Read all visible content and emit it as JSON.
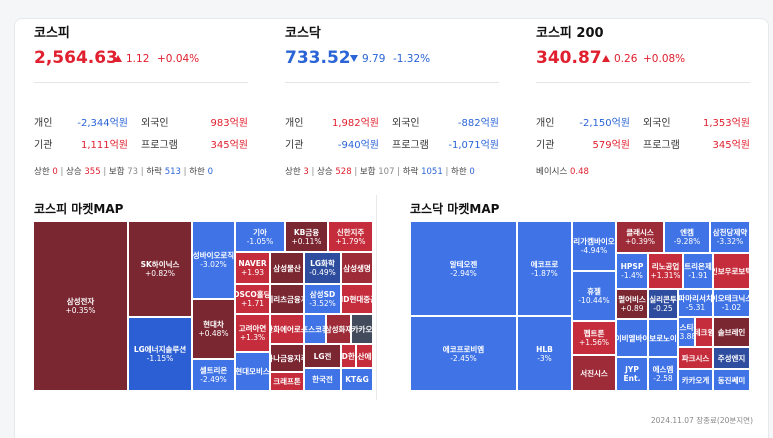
{
  "kospi": {
    "name": "코스피",
    "value": "2,564.63",
    "change": "1.12",
    "pct": "+0.04%",
    "individual_label": "개인",
    "individual": "-2,344억원",
    "foreign_label": "외국인",
    "foreign": "983억원",
    "institution_label": "기관",
    "institution": "1,111억원",
    "program_label": "프로그램",
    "program": "345억원",
    "breadth": {
      "upper_label": "상한",
      "upper": "0",
      "up_label": "상승",
      "up": "355",
      "flat_label": "보합",
      "flat": "73",
      "down_label": "하락",
      "down": "513",
      "lower_label": "하한",
      "lower": "0"
    }
  },
  "kosdaq": {
    "name": "코스닥",
    "value": "733.52",
    "change": "9.79",
    "pct": "-1.32%",
    "individual_label": "개인",
    "individual": "1,982억원",
    "foreign_label": "외국인",
    "foreign": "-882억원",
    "institution_label": "기관",
    "institution": "-940억원",
    "program_label": "프로그램",
    "program": "-1,071억원",
    "breadth": {
      "upper_label": "상한",
      "upper": "3",
      "up_label": "상승",
      "up": "528",
      "flat_label": "보합",
      "flat": "107",
      "down_label": "하락",
      "down": "1051",
      "lower_label": "하한",
      "lower": "0"
    }
  },
  "kospi200": {
    "name": "코스피 200",
    "value": "340.87",
    "change": "0.26",
    "pct": "+0.08%",
    "individual_label": "개인",
    "individual": "-2,150억원",
    "foreign_label": "외국인",
    "foreign": "1,353억원",
    "institution_label": "기관",
    "institution": "579억원",
    "program_label": "프로그램",
    "program": "345억원",
    "basis_label": "베이시스",
    "basis": "0.48"
  },
  "kospi_map": {
    "title": "코스피 마켓MAP",
    "tiles": [
      {
        "name": "삼성전자",
        "pct": "+0.35%",
        "color": "r1"
      },
      {
        "name": "SK하이닉스",
        "pct": "+0.82%",
        "color": "r1"
      },
      {
        "name": "LG에너지솔루션",
        "pct": "-1.15%",
        "color": "b1"
      },
      {
        "name": "삼성바이오로직스",
        "pct": "-3.02%",
        "color": "b2"
      },
      {
        "name": "현대차",
        "pct": "+0.48%",
        "color": "r1"
      },
      {
        "name": "셀트리온",
        "pct": "-2.49%",
        "color": "b2"
      },
      {
        "name": "기아",
        "pct": "-1.05%",
        "color": "b2"
      },
      {
        "name": "KB금융",
        "pct": "+0.11%",
        "color": "r1"
      },
      {
        "name": "신한지주",
        "pct": "+1.79%",
        "color": "r3"
      },
      {
        "name": "NAVER",
        "pct": "+1.93",
        "color": "r3"
      },
      {
        "name": "삼성물산",
        "pct": "",
        "color": "r1"
      },
      {
        "name": "LG화학",
        "pct": "-0.49%",
        "color": "b4"
      },
      {
        "name": "삼성생명",
        "pct": "",
        "color": "r2"
      },
      {
        "name": "메리츠금융지",
        "pct": "",
        "color": "r1"
      },
      {
        "name": "삼성SD",
        "pct": "-3.52%",
        "color": "b2"
      },
      {
        "name": "HD현대중공",
        "pct": "",
        "color": "r3"
      },
      {
        "name": "POSCO홀딩스",
        "pct": "+1.71",
        "color": "r3"
      },
      {
        "name": "한화에어로스",
        "pct": "",
        "color": "r3"
      },
      {
        "name": "포스코퓨",
        "pct": "",
        "color": "b2"
      },
      {
        "name": "삼성화재",
        "pct": "",
        "color": "r2"
      },
      {
        "name": "카카오",
        "pct": "",
        "color": "g0"
      },
      {
        "name": "고려아연",
        "pct": "+1.3%",
        "color": "r3"
      },
      {
        "name": "하나금융지주",
        "pct": "",
        "color": "r1"
      },
      {
        "name": "LG전",
        "pct": "",
        "color": "r1"
      },
      {
        "name": "HD한국",
        "pct": "",
        "color": "r3"
      },
      {
        "name": "두산에너",
        "pct": "",
        "color": "r3"
      },
      {
        "name": "현대모비스",
        "pct": "",
        "color": "b2"
      },
      {
        "name": "크래프톤",
        "pct": "",
        "color": "r3"
      },
      {
        "name": "한국전",
        "pct": "",
        "color": "b2"
      },
      {
        "name": "KT&G",
        "pct": "",
        "color": "b2"
      }
    ]
  },
  "kosdaq_map": {
    "title": "코스닥 마켓MAP",
    "tiles": [
      {
        "name": "알테오젠",
        "pct": "-2.94%",
        "color": "b2"
      },
      {
        "name": "에코프로비엠",
        "pct": "-2.45%",
        "color": "b2"
      },
      {
        "name": "에코프로",
        "pct": "-1.87%",
        "color": "b2"
      },
      {
        "name": "HLB",
        "pct": "-3%",
        "color": "b2"
      },
      {
        "name": "리가켐바이오",
        "pct": "-4.94%",
        "color": "b2"
      },
      {
        "name": "휴젤",
        "pct": "-10.44%",
        "color": "b2"
      },
      {
        "name": "클래시스",
        "pct": "+0.39%",
        "color": "r2"
      },
      {
        "name": "엔켐",
        "pct": "-9.28%",
        "color": "b2"
      },
      {
        "name": "삼천당제약",
        "pct": "-3.32%",
        "color": "b2"
      },
      {
        "name": "HPSP",
        "pct": "-1.4%",
        "color": "b2"
      },
      {
        "name": "리노공업",
        "pct": "+1.31%",
        "color": "r3"
      },
      {
        "name": "셀트리온제약",
        "pct": "-1.91",
        "color": "b2"
      },
      {
        "name": "레인보우로보틱스",
        "pct": "",
        "color": "r3"
      },
      {
        "name": "펄어비스",
        "pct": "+0.89",
        "color": "r1"
      },
      {
        "name": "실리콘투",
        "pct": "-0.25",
        "color": "b4"
      },
      {
        "name": "파마리서치",
        "pct": "-5.31",
        "color": "b2"
      },
      {
        "name": "이오테크닉스",
        "pct": "-1.02",
        "color": "b2"
      },
      {
        "name": "펩트론",
        "pct": "+1.56%",
        "color": "r3"
      },
      {
        "name": "에이비엘바이오",
        "pct": "",
        "color": "b2"
      },
      {
        "name": "보로노이",
        "pct": "",
        "color": "b2"
      },
      {
        "name": "에스티팜",
        "pct": "-3.88",
        "color": "b2"
      },
      {
        "name": "테크윙",
        "pct": "",
        "color": "r3"
      },
      {
        "name": "솔브레인",
        "pct": "",
        "color": "r1"
      },
      {
        "name": "서진시스",
        "pct": "",
        "color": "r2"
      },
      {
        "name": "JYP Ent.",
        "pct": "",
        "color": "b2"
      },
      {
        "name": "에스엠",
        "pct": "-2.58",
        "color": "b2"
      },
      {
        "name": "파크시스",
        "pct": "",
        "color": "r3"
      },
      {
        "name": "주성엔지",
        "pct": "",
        "color": "b4"
      },
      {
        "name": "카카오게",
        "pct": "",
        "color": "b2"
      },
      {
        "name": "동진쎄미",
        "pct": "",
        "color": "b2"
      }
    ]
  },
  "footnote": "2024.11.07 장종료(20분지연)"
}
